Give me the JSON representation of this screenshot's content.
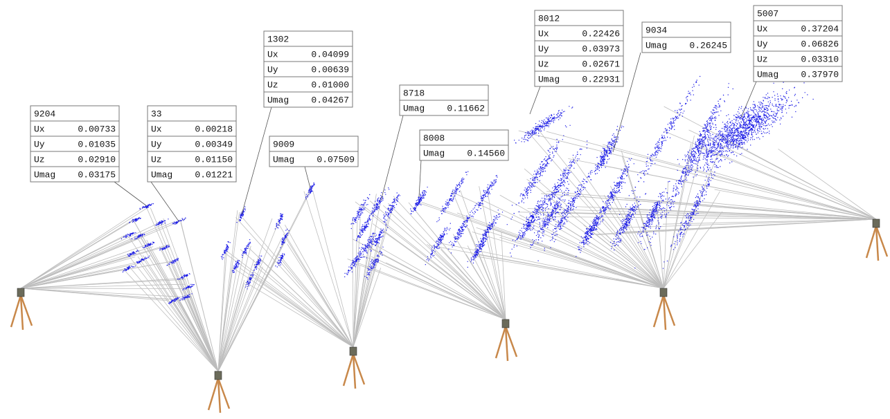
{
  "labels": [
    {
      "id": "9204",
      "rows": [
        {
          "label": "Ux",
          "value": "0.00733"
        },
        {
          "label": "Uy",
          "value": "0.01035"
        },
        {
          "label": "Uz",
          "value": "0.02910"
        },
        {
          "label": "Umag",
          "value": "0.03175"
        }
      ]
    },
    {
      "id": "33",
      "rows": [
        {
          "label": "Ux",
          "value": "0.00218"
        },
        {
          "label": "Uy",
          "value": "0.00349"
        },
        {
          "label": "Uz",
          "value": "0.01150"
        },
        {
          "label": "Umag",
          "value": "0.01221"
        }
      ]
    },
    {
      "id": "1302",
      "rows": [
        {
          "label": "Ux",
          "value": "0.04099"
        },
        {
          "label": "Uy",
          "value": "0.00639"
        },
        {
          "label": "Uz",
          "value": "0.01000"
        },
        {
          "label": "Umag",
          "value": "0.04267"
        }
      ]
    },
    {
      "id": "9009",
      "rows": [
        {
          "label": "Umag",
          "value": "0.07509"
        }
      ]
    },
    {
      "id": "8718",
      "rows": [
        {
          "label": "Umag",
          "value": "0.11662"
        }
      ]
    },
    {
      "id": "8008",
      "rows": [
        {
          "label": "Umag",
          "value": "0.14560"
        }
      ]
    },
    {
      "id": "8012",
      "rows": [
        {
          "label": "Ux",
          "value": "0.22426"
        },
        {
          "label": "Uy",
          "value": "0.03973"
        },
        {
          "label": "Uz",
          "value": "0.02671"
        },
        {
          "label": "Umag",
          "value": "0.22931"
        }
      ]
    },
    {
      "id": "9034",
      "rows": [
        {
          "label": "Umag",
          "value": "0.26245"
        }
      ]
    },
    {
      "id": "5007",
      "rows": [
        {
          "label": "Ux",
          "value": "0.37204"
        },
        {
          "label": "Uy",
          "value": "0.06826"
        },
        {
          "label": "Uz",
          "value": "0.03310"
        },
        {
          "label": "Umag",
          "value": "0.37970"
        }
      ]
    }
  ]
}
